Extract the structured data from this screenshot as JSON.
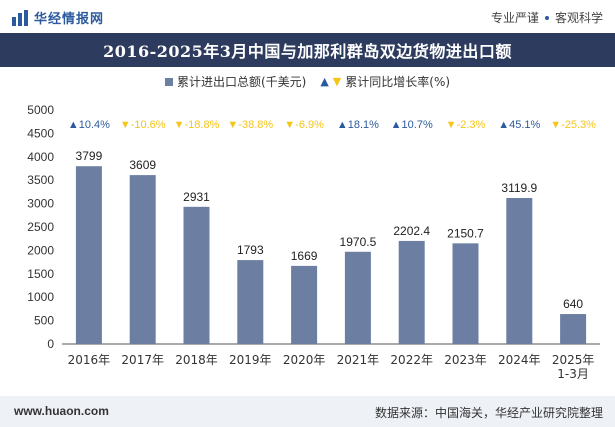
{
  "header": {
    "brand": "华经情报网",
    "tagline_left": "专业严谨",
    "tagline_right": "客观科学"
  },
  "footer": {
    "url": "www.huaon.com",
    "source": "数据来源：中国海关，华经产业研究院整理"
  },
  "colors": {
    "bar": "#6c7fa3",
    "up": "#2c5a9e",
    "down": "#f5c518",
    "title_bg": "#2d3b5e"
  },
  "chart_data": {
    "type": "bar",
    "title": "2016-2025年3月中国与加那利群岛双边货物进出口额",
    "categories": [
      "2016年",
      "2017年",
      "2018年",
      "2019年",
      "2020年",
      "2021年",
      "2022年",
      "2023年",
      "2024年",
      "2025年1-3月"
    ],
    "category_lines": [
      [
        "2016年"
      ],
      [
        "2017年"
      ],
      [
        "2018年"
      ],
      [
        "2019年"
      ],
      [
        "2020年"
      ],
      [
        "2021年"
      ],
      [
        "2022年"
      ],
      [
        "2023年"
      ],
      [
        "2024年"
      ],
      [
        "2025年",
        "1-3月"
      ]
    ],
    "series": [
      {
        "name": "累计进出口总额(千美元)",
        "values": [
          3799,
          3609,
          2931,
          1793,
          1669,
          1970.5,
          2202.4,
          2150.7,
          3119.9,
          640
        ],
        "labels": [
          "3799",
          "3609",
          "2931",
          "1793",
          "1669",
          "1970.5",
          "2202.4",
          "2150.7",
          "3119.9",
          "640"
        ]
      },
      {
        "name": "累计同比增长率(%)",
        "values": [
          10.4,
          -10.6,
          -18.8,
          -38.8,
          -6.9,
          18.1,
          10.7,
          -2.3,
          45.1,
          -25.3
        ],
        "labels": [
          "10.4%",
          "-10.6%",
          "-18.8%",
          "-38.8%",
          "-6.9%",
          "18.1%",
          "10.7%",
          "-2.3%",
          "45.1%",
          "-25.3%"
        ]
      }
    ],
    "ylim": [
      0,
      5000
    ],
    "yticks": [
      0,
      500,
      1000,
      1500,
      2000,
      2500,
      3000,
      3500,
      4000,
      4500,
      5000
    ],
    "xlabel": "",
    "ylabel": ""
  }
}
